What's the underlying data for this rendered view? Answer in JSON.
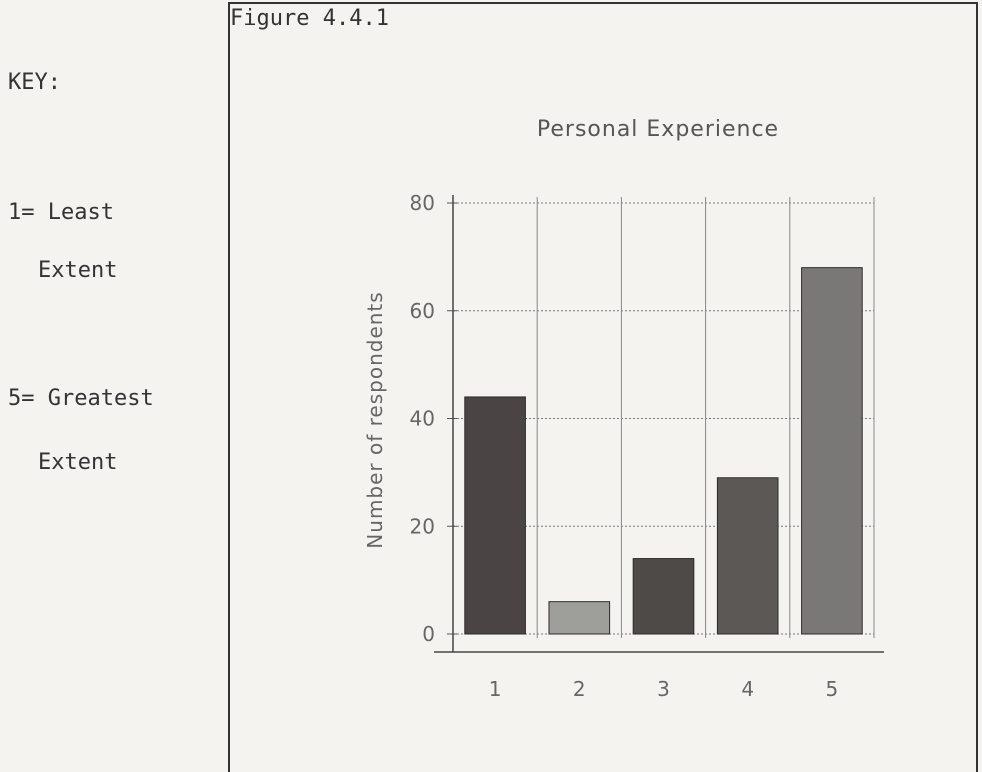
{
  "figure_label": "Figure 4.4.1",
  "key": {
    "heading": "KEY:",
    "least_line1": "1= Least",
    "least_line2": "Extent",
    "greatest_line1": "5= Greatest",
    "greatest_line2": "Extent"
  },
  "chart_data": {
    "type": "bar",
    "title": "Personal Experience",
    "xlabel": "",
    "ylabel": "Number of respondents",
    "categories": [
      "1",
      "2",
      "3",
      "4",
      "5"
    ],
    "values": [
      44,
      6,
      14,
      29,
      68
    ],
    "ylim": [
      0,
      80
    ],
    "yticks": [
      0,
      20,
      40,
      60,
      80
    ],
    "grid": true,
    "bar_colors": [
      "#4a4444",
      "#9e9e9a",
      "#4e4a48",
      "#5c5856",
      "#7a7876"
    ]
  }
}
